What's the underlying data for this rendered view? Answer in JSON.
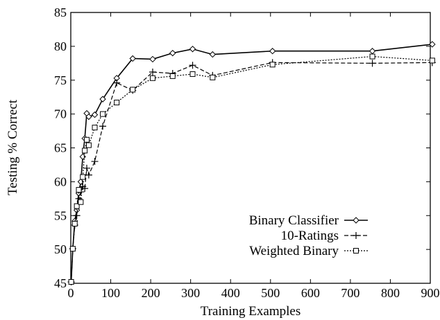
{
  "chart_data": {
    "type": "line",
    "title": "",
    "xlabel": "Training Examples",
    "ylabel": "Testing % Correct",
    "xlim": [
      0,
      900
    ],
    "ylim": [
      45,
      85
    ],
    "xticks": [
      0,
      100,
      200,
      300,
      400,
      500,
      600,
      700,
      800,
      900
    ],
    "yticks": [
      45,
      50,
      55,
      60,
      65,
      70,
      75,
      80,
      85
    ],
    "grid": false,
    "legend_position": "bottom-right",
    "series": [
      {
        "name": "Binary Classifier",
        "marker": "diamond",
        "linestyle": "solid",
        "x": [
          1,
          5,
          10,
          15,
          20,
          25,
          30,
          35,
          40,
          45,
          60,
          80,
          115,
          155,
          205,
          255,
          305,
          355,
          505,
          755,
          905
        ],
        "y": [
          45.2,
          50.1,
          54.2,
          55.8,
          58.3,
          60.0,
          63.7,
          66.4,
          70.1,
          69.6,
          69.9,
          72.2,
          75.3,
          78.2,
          78.1,
          79.0,
          79.6,
          78.8,
          79.3,
          79.3,
          80.3
        ]
      },
      {
        "name": "10-Ratings",
        "marker": "plus",
        "linestyle": "dashed",
        "x": [
          1,
          5,
          10,
          15,
          20,
          25,
          30,
          35,
          40,
          45,
          60,
          80,
          115,
          155,
          205,
          255,
          305,
          355,
          505,
          755,
          905
        ],
        "y": [
          45.2,
          50.1,
          53.6,
          55.0,
          57.5,
          58.5,
          59.3,
          59.0,
          62.0,
          61.0,
          63.0,
          68.2,
          74.6,
          73.5,
          76.2,
          76.0,
          77.2,
          75.7,
          77.6,
          77.5,
          77.6
        ]
      },
      {
        "name": "Weighted Binary",
        "marker": "square",
        "linestyle": "dotted",
        "x": [
          1,
          5,
          10,
          15,
          20,
          25,
          30,
          35,
          40,
          45,
          60,
          80,
          115,
          155,
          205,
          255,
          305,
          355,
          505,
          755,
          905
        ],
        "y": [
          45.2,
          50.1,
          53.8,
          56.4,
          58.8,
          57.0,
          60.7,
          64.6,
          66.2,
          65.4,
          68.0,
          70.0,
          71.7,
          73.6,
          75.3,
          75.6,
          75.9,
          75.4,
          77.3,
          78.5,
          77.9
        ]
      }
    ]
  }
}
